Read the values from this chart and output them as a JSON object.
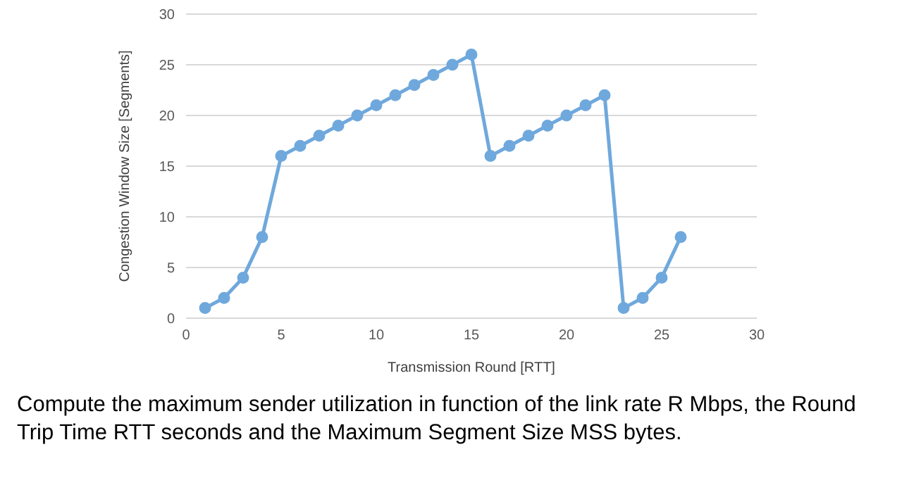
{
  "chart_data": {
    "type": "line",
    "xlabel": "Transmission Round [RTT]",
    "ylabel": "Congestion Window Size [Segments]",
    "x": [
      1,
      2,
      3,
      4,
      5,
      6,
      7,
      8,
      9,
      10,
      11,
      12,
      13,
      14,
      15,
      16,
      17,
      18,
      19,
      20,
      21,
      22,
      23,
      24,
      25,
      26
    ],
    "series": [
      {
        "color": "#6fa8dc",
        "values": [
          1,
          2,
          4,
          8,
          16,
          17,
          18,
          19,
          20,
          21,
          22,
          23,
          24,
          25,
          26,
          16,
          17,
          18,
          19,
          20,
          21,
          22,
          1,
          2,
          4,
          8
        ]
      }
    ],
    "xlim": [
      0,
      30
    ],
    "xticks": [
      0,
      5,
      10,
      15,
      20,
      25,
      30
    ],
    "ylim": [
      0,
      30
    ],
    "yticks": [
      0,
      5,
      10,
      15,
      20,
      25,
      30
    ],
    "grid": "y",
    "marker": "circle",
    "line_style": "solid",
    "annotations": [
      "Compute the maximum sender utilization in function of the link rate R Mbps, the Round Trip Time RTT seconds and the Maximum Segment Size MSS bytes."
    ]
  }
}
